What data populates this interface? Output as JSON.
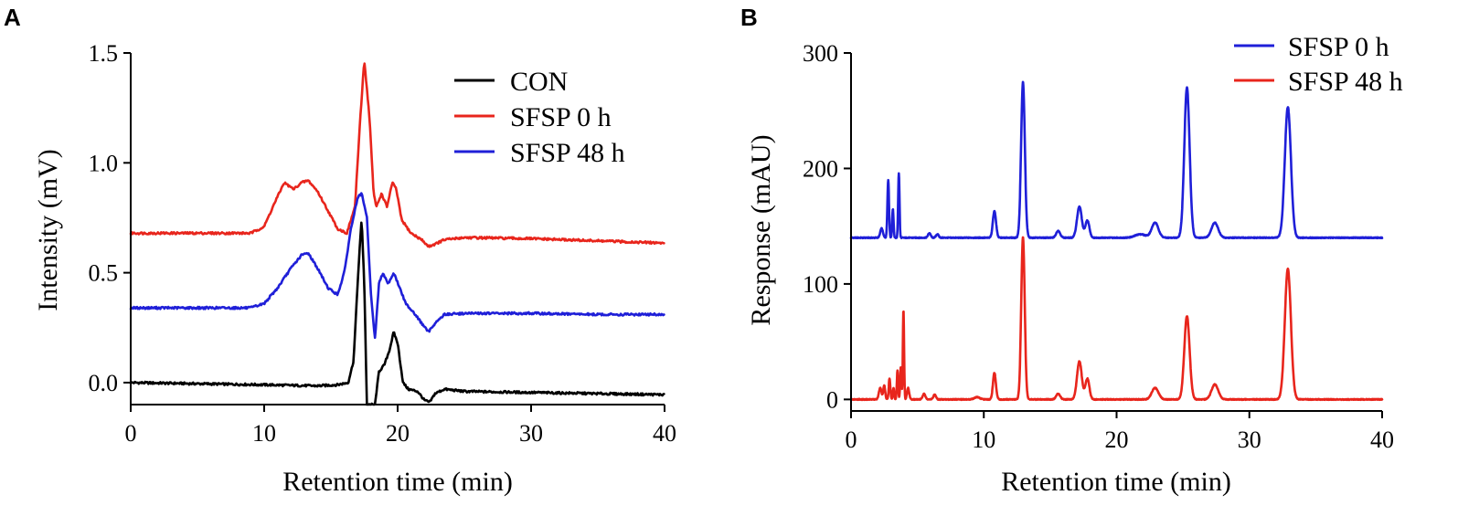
{
  "chart_data": [
    {
      "panel": "A",
      "type": "line",
      "title": "",
      "xlabel": "Retention time (min)",
      "ylabel": "Intensity (mV)",
      "xlim": [
        0,
        40
      ],
      "ylim": [
        -0.1,
        1.5
      ],
      "xticks": [
        0,
        10,
        20,
        30,
        40
      ],
      "yticks": [
        0.0,
        0.5,
        1.0,
        1.5
      ],
      "ytick_labels": [
        "0.0",
        "0.5",
        "1.0",
        "1.5"
      ],
      "legend_position": "top-right",
      "series": [
        {
          "name": "CON",
          "color": "#000000",
          "points": [
            [
              0,
              0.0
            ],
            [
              5,
              -0.005
            ],
            [
              10,
              -0.01
            ],
            [
              14,
              -0.015
            ],
            [
              15.5,
              -0.01
            ],
            [
              16.3,
              0.0
            ],
            [
              16.7,
              0.1
            ],
            [
              17.0,
              0.45
            ],
            [
              17.3,
              0.75
            ],
            [
              17.5,
              0.45
            ],
            [
              17.7,
              -0.1
            ],
            [
              18.3,
              -0.1
            ],
            [
              18.6,
              0.05
            ],
            [
              19.0,
              0.08
            ],
            [
              19.4,
              0.15
            ],
            [
              19.7,
              0.23
            ],
            [
              20.0,
              0.18
            ],
            [
              20.4,
              0.0
            ],
            [
              20.8,
              -0.03
            ],
            [
              21.5,
              -0.04
            ],
            [
              22.0,
              -0.08
            ],
            [
              22.4,
              -0.09
            ],
            [
              22.8,
              -0.05
            ],
            [
              23.5,
              -0.03
            ],
            [
              25,
              -0.04
            ],
            [
              30,
              -0.045
            ],
            [
              35,
              -0.05
            ],
            [
              40,
              -0.055
            ]
          ]
        },
        {
          "name": "SFSP 0 h",
          "color": "#e8251c",
          "points": [
            [
              0,
              0.68
            ],
            [
              5,
              0.68
            ],
            [
              9,
              0.68
            ],
            [
              10,
              0.71
            ],
            [
              10.8,
              0.82
            ],
            [
              11.5,
              0.91
            ],
            [
              12.2,
              0.88
            ],
            [
              12.8,
              0.91
            ],
            [
              13.3,
              0.92
            ],
            [
              14,
              0.87
            ],
            [
              14.8,
              0.78
            ],
            [
              15.5,
              0.7
            ],
            [
              16.2,
              0.68
            ],
            [
              16.8,
              0.8
            ],
            [
              17.2,
              1.2
            ],
            [
              17.5,
              1.47
            ],
            [
              17.9,
              1.2
            ],
            [
              18.2,
              0.86
            ],
            [
              18.4,
              0.8
            ],
            [
              18.8,
              0.86
            ],
            [
              19.2,
              0.8
            ],
            [
              19.6,
              0.91
            ],
            [
              19.9,
              0.88
            ],
            [
              20.3,
              0.74
            ],
            [
              21,
              0.68
            ],
            [
              21.8,
              0.65
            ],
            [
              22.3,
              0.62
            ],
            [
              22.8,
              0.63
            ],
            [
              23.5,
              0.65
            ],
            [
              25,
              0.66
            ],
            [
              30,
              0.655
            ],
            [
              35,
              0.645
            ],
            [
              40,
              0.635
            ]
          ]
        },
        {
          "name": "SFSP 48 h",
          "color": "#1f1fd8",
          "points": [
            [
              0,
              0.34
            ],
            [
              5,
              0.34
            ],
            [
              9,
              0.34
            ],
            [
              10,
              0.36
            ],
            [
              11,
              0.43
            ],
            [
              12,
              0.52
            ],
            [
              12.8,
              0.58
            ],
            [
              13.3,
              0.59
            ],
            [
              14,
              0.52
            ],
            [
              14.8,
              0.43
            ],
            [
              15.5,
              0.4
            ],
            [
              16,
              0.5
            ],
            [
              16.5,
              0.7
            ],
            [
              17,
              0.84
            ],
            [
              17.3,
              0.86
            ],
            [
              17.7,
              0.75
            ],
            [
              18.0,
              0.4
            ],
            [
              18.3,
              0.2
            ],
            [
              18.6,
              0.45
            ],
            [
              18.9,
              0.5
            ],
            [
              19.3,
              0.45
            ],
            [
              19.7,
              0.5
            ],
            [
              20.1,
              0.44
            ],
            [
              20.6,
              0.36
            ],
            [
              21.2,
              0.32
            ],
            [
              21.8,
              0.27
            ],
            [
              22.3,
              0.23
            ],
            [
              22.8,
              0.27
            ],
            [
              23.5,
              0.31
            ],
            [
              25,
              0.315
            ],
            [
              30,
              0.315
            ],
            [
              35,
              0.31
            ],
            [
              40,
              0.31
            ]
          ]
        }
      ]
    },
    {
      "panel": "B",
      "type": "line",
      "title": "",
      "xlabel": "Retention time (min)",
      "ylabel": "Response (mAU)",
      "xlim": [
        0,
        40
      ],
      "ylim": [
        -10,
        300
      ],
      "xticks": [
        0,
        10,
        20,
        30,
        40
      ],
      "yticks": [
        0,
        100,
        200,
        300
      ],
      "ytick_labels": [
        "0",
        "100",
        "200",
        "300"
      ],
      "legend_position": "top-right",
      "series": [
        {
          "name": "SFSP 0 h",
          "color": "#1f1fd8",
          "baseline": 140,
          "peaks": [
            [
              2.3,
              8,
              0.1
            ],
            [
              2.8,
              50,
              0.06
            ],
            [
              3.15,
              25,
              0.05
            ],
            [
              3.6,
              56,
              0.05
            ],
            [
              5.9,
              4,
              0.1
            ],
            [
              6.5,
              3,
              0.1
            ],
            [
              10.8,
              23,
              0.12
            ],
            [
              12.95,
              135,
              0.14
            ],
            [
              15.6,
              6,
              0.15
            ],
            [
              17.2,
              27,
              0.18
            ],
            [
              17.8,
              15,
              0.15
            ],
            [
              21.8,
              3,
              0.4
            ],
            [
              22.9,
              13,
              0.25
            ],
            [
              25.3,
              130,
              0.2
            ],
            [
              27.4,
              13,
              0.25
            ],
            [
              32.9,
              113,
              0.23
            ]
          ]
        },
        {
          "name": "SFSP 48 h",
          "color": "#e8251c",
          "baseline": 0,
          "peaks": [
            [
              2.2,
              10,
              0.1
            ],
            [
              2.5,
              12,
              0.07
            ],
            [
              2.9,
              18,
              0.06
            ],
            [
              3.2,
              10,
              0.05
            ],
            [
              3.5,
              25,
              0.05
            ],
            [
              3.75,
              28,
              0.05
            ],
            [
              3.95,
              78,
              0.045
            ],
            [
              4.3,
              10,
              0.08
            ],
            [
              5.5,
              5,
              0.1
            ],
            [
              6.3,
              4,
              0.1
            ],
            [
              9.5,
              2,
              0.2
            ],
            [
              10.8,
              23,
              0.11
            ],
            [
              12.95,
              141,
              0.13
            ],
            [
              15.6,
              5,
              0.15
            ],
            [
              17.2,
              33,
              0.18
            ],
            [
              17.8,
              18,
              0.15
            ],
            [
              22.9,
              10,
              0.25
            ],
            [
              25.3,
              72,
              0.2
            ],
            [
              27.4,
              13,
              0.25
            ],
            [
              32.9,
              113,
              0.23
            ]
          ]
        }
      ]
    }
  ]
}
